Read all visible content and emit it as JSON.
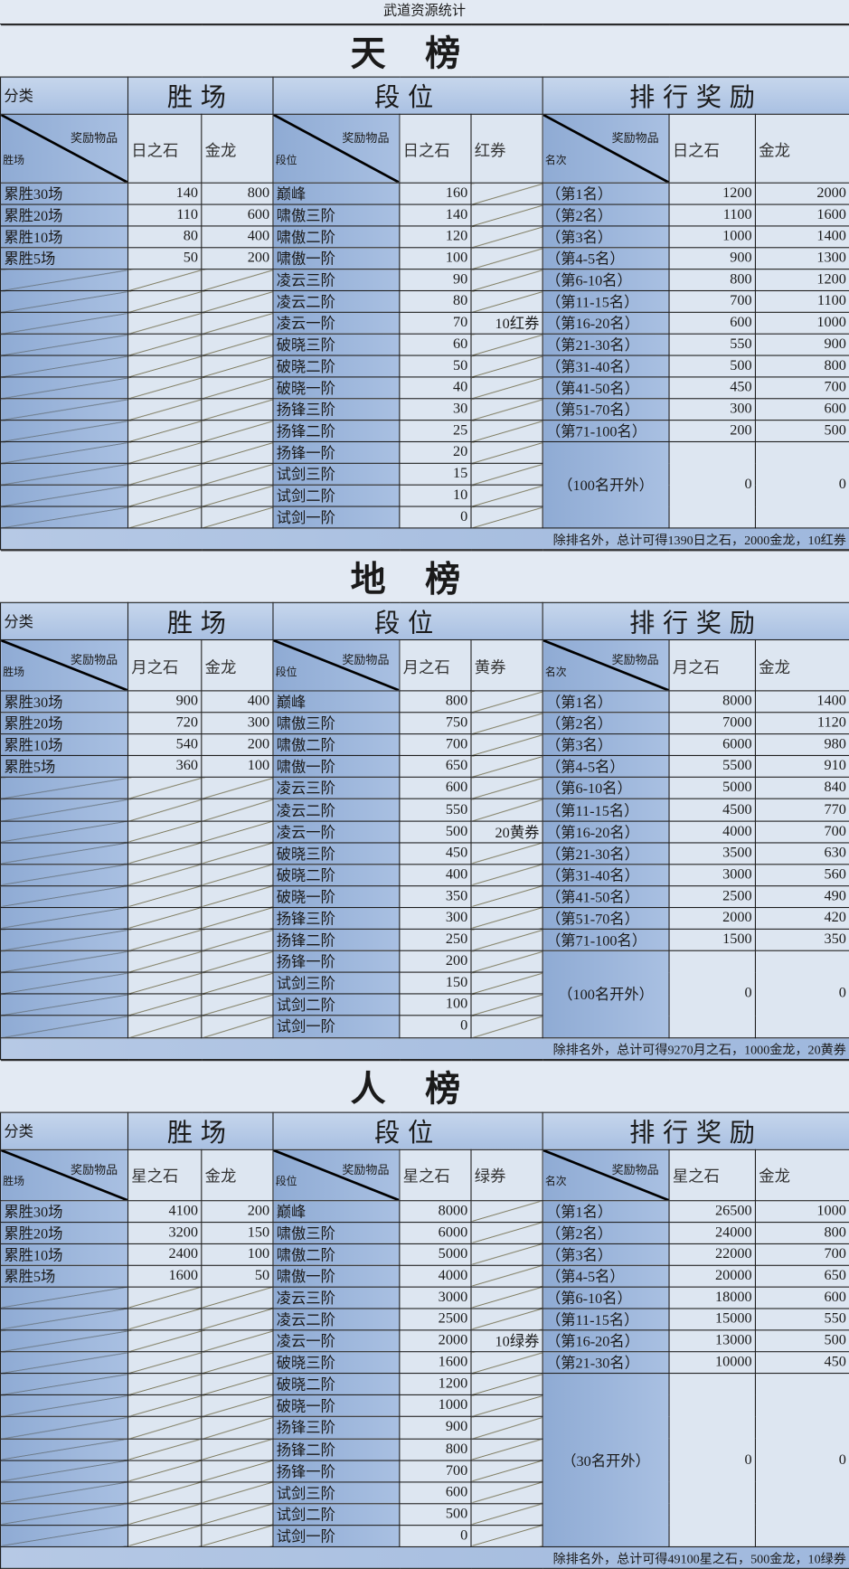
{
  "page_title": "武道资源统计",
  "colors": {
    "label_cell": "#9bb5da",
    "value_cell": "#dde6f1",
    "background": "#e3eaf3"
  },
  "headers": {
    "category": "分类",
    "wins": "胜场",
    "segment": "段位",
    "ranking": "排行奖励",
    "reward_items": "奖励物品",
    "wins_axis": "胜场",
    "segment_axis": "段位",
    "rank_axis": "名次",
    "gold": "金龙"
  },
  "sections": [
    {
      "title": "天榜",
      "stone": "日之石",
      "ticket": "红券",
      "wins": [
        {
          "label": "累胜30场",
          "stone": "140",
          "gold": "800"
        },
        {
          "label": "累胜20场",
          "stone": "110",
          "gold": "600"
        },
        {
          "label": "累胜10场",
          "stone": "80",
          "gold": "400"
        },
        {
          "label": "累胜5场",
          "stone": "50",
          "gold": "200"
        }
      ],
      "segments": [
        {
          "label": "巅峰",
          "stone": "160"
        },
        {
          "label": "啸傲三阶",
          "stone": "140"
        },
        {
          "label": "啸傲二阶",
          "stone": "120"
        },
        {
          "label": "啸傲一阶",
          "stone": "100"
        },
        {
          "label": "凌云三阶",
          "stone": "90"
        },
        {
          "label": "凌云二阶",
          "stone": "80"
        },
        {
          "label": "凌云一阶",
          "stone": "70",
          "ticket": "10红券"
        },
        {
          "label": "破晓三阶",
          "stone": "60"
        },
        {
          "label": "破晓二阶",
          "stone": "50"
        },
        {
          "label": "破晓一阶",
          "stone": "40"
        },
        {
          "label": "扬锋三阶",
          "stone": "30"
        },
        {
          "label": "扬锋二阶",
          "stone": "25"
        },
        {
          "label": "扬锋一阶",
          "stone": "20"
        },
        {
          "label": "试剑三阶",
          "stone": "15"
        },
        {
          "label": "试剑二阶",
          "stone": "10"
        },
        {
          "label": "试剑一阶",
          "stone": "0"
        }
      ],
      "ranks": [
        {
          "label": "（第1名）",
          "stone": "1200",
          "gold": "2000"
        },
        {
          "label": "（第2名）",
          "stone": "1100",
          "gold": "1600"
        },
        {
          "label": "（第3名）",
          "stone": "1000",
          "gold": "1400"
        },
        {
          "label": "（第4-5名）",
          "stone": "900",
          "gold": "1300"
        },
        {
          "label": "（第6-10名）",
          "stone": "800",
          "gold": "1200"
        },
        {
          "label": "（第11-15名）",
          "stone": "700",
          "gold": "1100"
        },
        {
          "label": "（第16-20名）",
          "stone": "600",
          "gold": "1000"
        },
        {
          "label": "（第21-30名）",
          "stone": "550",
          "gold": "900"
        },
        {
          "label": "（第31-40名）",
          "stone": "500",
          "gold": "800"
        },
        {
          "label": "（第41-50名）",
          "stone": "450",
          "gold": "700"
        },
        {
          "label": "（第51-70名）",
          "stone": "300",
          "gold": "600"
        },
        {
          "label": "（第71-100名）",
          "stone": "200",
          "gold": "500"
        }
      ],
      "outside": {
        "label": "（100名开外）",
        "stone": "0",
        "gold": "0"
      },
      "footer": "除排名外，总计可得1390日之石，2000金龙，10红券"
    },
    {
      "title": "地榜",
      "stone": "月之石",
      "ticket": "黄券",
      "wins": [
        {
          "label": "累胜30场",
          "stone": "900",
          "gold": "400"
        },
        {
          "label": "累胜20场",
          "stone": "720",
          "gold": "300"
        },
        {
          "label": "累胜10场",
          "stone": "540",
          "gold": "200"
        },
        {
          "label": "累胜5场",
          "stone": "360",
          "gold": "100"
        }
      ],
      "segments": [
        {
          "label": "巅峰",
          "stone": "800"
        },
        {
          "label": "啸傲三阶",
          "stone": "750"
        },
        {
          "label": "啸傲二阶",
          "stone": "700"
        },
        {
          "label": "啸傲一阶",
          "stone": "650"
        },
        {
          "label": "凌云三阶",
          "stone": "600"
        },
        {
          "label": "凌云二阶",
          "stone": "550"
        },
        {
          "label": "凌云一阶",
          "stone": "500",
          "ticket": "20黄券"
        },
        {
          "label": "破晓三阶",
          "stone": "450"
        },
        {
          "label": "破晓二阶",
          "stone": "400"
        },
        {
          "label": "破晓一阶",
          "stone": "350"
        },
        {
          "label": "扬锋三阶",
          "stone": "300"
        },
        {
          "label": "扬锋二阶",
          "stone": "250"
        },
        {
          "label": "扬锋一阶",
          "stone": "200"
        },
        {
          "label": "试剑三阶",
          "stone": "150"
        },
        {
          "label": "试剑二阶",
          "stone": "100"
        },
        {
          "label": "试剑一阶",
          "stone": "0"
        }
      ],
      "ranks": [
        {
          "label": "（第1名）",
          "stone": "8000",
          "gold": "1400"
        },
        {
          "label": "（第2名）",
          "stone": "7000",
          "gold": "1120"
        },
        {
          "label": "（第3名）",
          "stone": "6000",
          "gold": "980"
        },
        {
          "label": "（第4-5名）",
          "stone": "5500",
          "gold": "910"
        },
        {
          "label": "（第6-10名）",
          "stone": "5000",
          "gold": "840"
        },
        {
          "label": "（第11-15名）",
          "stone": "4500",
          "gold": "770"
        },
        {
          "label": "（第16-20名）",
          "stone": "4000",
          "gold": "700"
        },
        {
          "label": "（第21-30名）",
          "stone": "3500",
          "gold": "630"
        },
        {
          "label": "（第31-40名）",
          "stone": "3000",
          "gold": "560"
        },
        {
          "label": "（第41-50名）",
          "stone": "2500",
          "gold": "490"
        },
        {
          "label": "（第51-70名）",
          "stone": "2000",
          "gold": "420"
        },
        {
          "label": "（第71-100名）",
          "stone": "1500",
          "gold": "350"
        }
      ],
      "outside": {
        "label": "（100名开外）",
        "stone": "0",
        "gold": "0"
      },
      "footer": "除排名外，总计可得9270月之石，1000金龙，20黄券"
    },
    {
      "title": "人榜",
      "stone": "星之石",
      "ticket": "绿券",
      "wins": [
        {
          "label": "累胜30场",
          "stone": "4100",
          "gold": "200"
        },
        {
          "label": "累胜20场",
          "stone": "3200",
          "gold": "150"
        },
        {
          "label": "累胜10场",
          "stone": "2400",
          "gold": "100"
        },
        {
          "label": "累胜5场",
          "stone": "1600",
          "gold": "50"
        }
      ],
      "segments": [
        {
          "label": "巅峰",
          "stone": "8000"
        },
        {
          "label": "啸傲三阶",
          "stone": "6000"
        },
        {
          "label": "啸傲二阶",
          "stone": "5000"
        },
        {
          "label": "啸傲一阶",
          "stone": "4000"
        },
        {
          "label": "凌云三阶",
          "stone": "3000"
        },
        {
          "label": "凌云二阶",
          "stone": "2500"
        },
        {
          "label": "凌云一阶",
          "stone": "2000",
          "ticket": "10绿券"
        },
        {
          "label": "破晓三阶",
          "stone": "1600"
        },
        {
          "label": "破晓二阶",
          "stone": "1200"
        },
        {
          "label": "破晓一阶",
          "stone": "1000"
        },
        {
          "label": "扬锋三阶",
          "stone": "900"
        },
        {
          "label": "扬锋二阶",
          "stone": "800"
        },
        {
          "label": "扬锋一阶",
          "stone": "700"
        },
        {
          "label": "试剑三阶",
          "stone": "600"
        },
        {
          "label": "试剑二阶",
          "stone": "500"
        },
        {
          "label": "试剑一阶",
          "stone": "0"
        }
      ],
      "ranks": [
        {
          "label": "（第1名）",
          "stone": "26500",
          "gold": "1000"
        },
        {
          "label": "（第2名）",
          "stone": "24000",
          "gold": "800"
        },
        {
          "label": "（第3名）",
          "stone": "22000",
          "gold": "700"
        },
        {
          "label": "（第4-5名）",
          "stone": "20000",
          "gold": "650"
        },
        {
          "label": "（第6-10名）",
          "stone": "18000",
          "gold": "600"
        },
        {
          "label": "（第11-15名）",
          "stone": "15000",
          "gold": "550"
        },
        {
          "label": "（第16-20名）",
          "stone": "13000",
          "gold": "500"
        },
        {
          "label": "（第21-30名）",
          "stone": "10000",
          "gold": "450"
        }
      ],
      "outside": {
        "label": "（30名开外）",
        "stone": "0",
        "gold": "0"
      },
      "footer": "除排名外，总计可得49100星之石，500金龙，10绿券"
    }
  ]
}
